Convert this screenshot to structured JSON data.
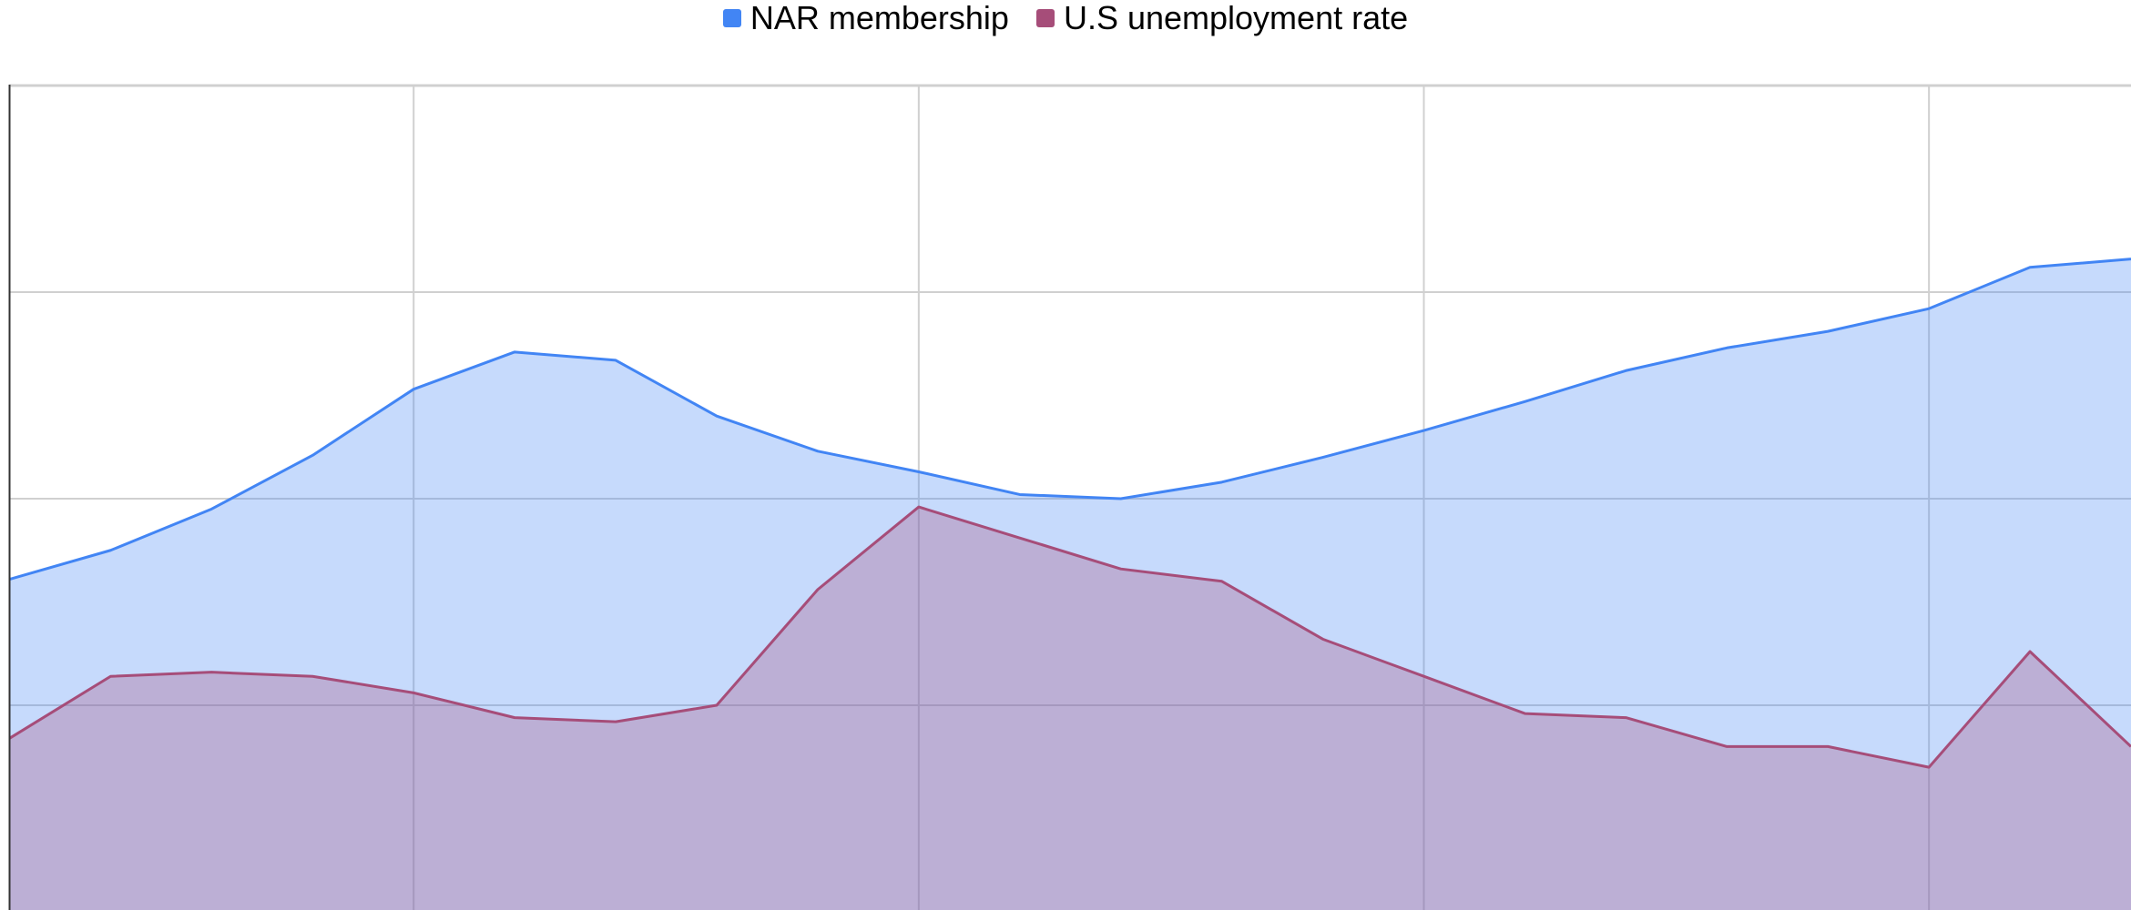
{
  "chart_data": {
    "type": "area",
    "title": "",
    "xlabel": "",
    "ylabel": "",
    "x": [
      0,
      1,
      2,
      3,
      4,
      5,
      6,
      7,
      8,
      9,
      10,
      11,
      12,
      13,
      14,
      15,
      16,
      17,
      18,
      19,
      20,
      21
    ],
    "ylim": [
      0,
      4
    ],
    "grid": true,
    "legend_position": "top",
    "series": [
      {
        "name": "NAR membership",
        "color": "#4285f4",
        "values": [
          1.61,
          1.75,
          1.95,
          2.21,
          2.53,
          2.71,
          2.67,
          2.4,
          2.23,
          2.13,
          2.02,
          2.0,
          2.08,
          2.2,
          2.33,
          2.47,
          2.62,
          2.73,
          2.81,
          2.92,
          3.12,
          3.16
        ]
      },
      {
        "name": "U.S unemployment rate",
        "color": "#a64d79",
        "values": [
          0.84,
          1.14,
          1.16,
          1.14,
          1.06,
          0.94,
          0.92,
          1.0,
          1.56,
          1.96,
          1.81,
          1.66,
          1.6,
          1.32,
          1.14,
          0.96,
          0.94,
          0.8,
          0.8,
          0.7,
          1.26,
          0.8
        ]
      }
    ]
  }
}
